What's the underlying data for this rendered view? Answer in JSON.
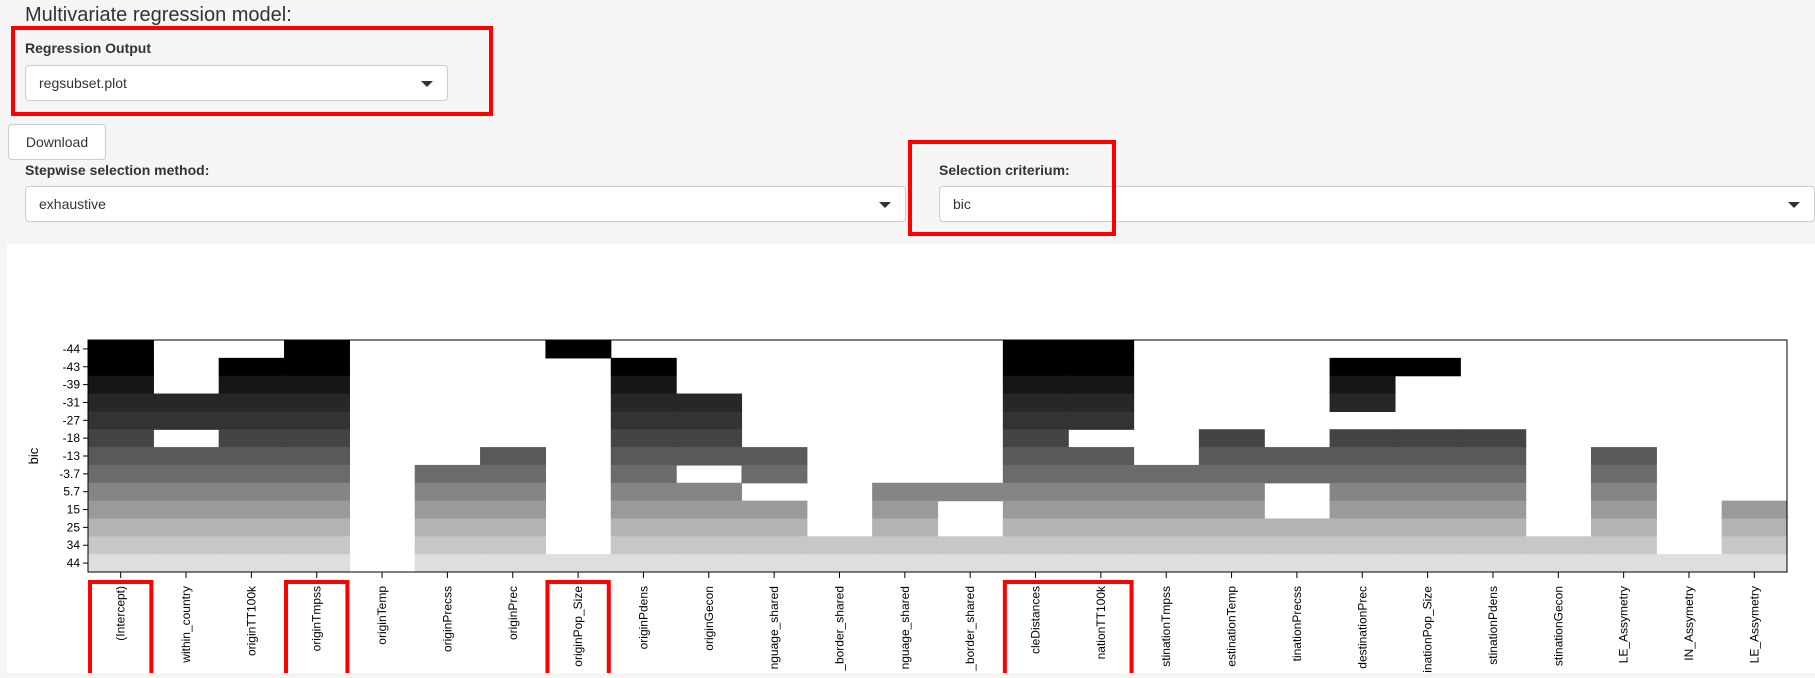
{
  "page": {
    "title": "Multivariate regression model:"
  },
  "regression_output": {
    "label": "Regression Output",
    "value": "regsubset.plot"
  },
  "download": {
    "label": "Download"
  },
  "stepwise": {
    "label": "Stepwise selection method:",
    "value": "exhaustive"
  },
  "criterium": {
    "label": "Selection criterium:",
    "value": "bic"
  },
  "icons": {
    "dropdown": "chevron-down-icon"
  },
  "colors": {
    "highlight": "#ff0000"
  },
  "chart_data": {
    "type": "heatmap",
    "ylabel": "bic",
    "y_ticks": [
      "-44",
      "-43",
      "-39",
      "-31",
      "-27",
      "-18",
      "-13",
      "-3.7",
      "5.7",
      "15",
      "25",
      "34",
      "44"
    ],
    "x_ticks": [
      "(Intercept)",
      "within_country",
      "originTT100k",
      "originTmpss",
      "originTemp",
      "originPrecss",
      "originPrec",
      "originPop_Size",
      "originPdens",
      "originGecon",
      "nguage_shared",
      "_border_shared",
      "nguage_shared",
      "_border_shared",
      "cleDistances",
      "nationTT100k",
      "stinationTmpss",
      "estinationTemp",
      "tinationPrecss",
      "destinationPrec",
      "stinationPop_Size",
      "stinationPdens",
      "stinationGecon",
      "LE_Assymetry",
      "IN_Assymetry",
      "LE_Assymetry"
    ],
    "highlighted": [
      "(Intercept)",
      "originTmpss",
      "originPop_Size",
      "cleDistances",
      "nationTT100k"
    ],
    "shades": [
      "#000000",
      "#000000",
      "#161616",
      "#272727",
      "#333333",
      "#444444",
      "#595959",
      "#6b6b6b",
      "#858585",
      "#9a9a9a",
      "#b3b3b3",
      "#c7c7c7",
      "#dedede"
    ],
    "included": [
      [
        1,
        0,
        0,
        1,
        0,
        0,
        0,
        1,
        0,
        0,
        0,
        0,
        0,
        0,
        1,
        1,
        0,
        0,
        0,
        0,
        0,
        0,
        0,
        0,
        0,
        0
      ],
      [
        1,
        0,
        1,
        1,
        0,
        0,
        0,
        0,
        1,
        0,
        0,
        0,
        0,
        0,
        1,
        1,
        0,
        0,
        0,
        1,
        1,
        0,
        0,
        0,
        0,
        0
      ],
      [
        1,
        0,
        1,
        1,
        0,
        0,
        0,
        0,
        1,
        0,
        0,
        0,
        0,
        0,
        1,
        1,
        0,
        0,
        0,
        1,
        0,
        0,
        0,
        0,
        0,
        0
      ],
      [
        1,
        1,
        1,
        1,
        0,
        0,
        0,
        0,
        1,
        1,
        0,
        0,
        0,
        0,
        1,
        1,
        0,
        0,
        0,
        1,
        0,
        0,
        0,
        0,
        0,
        0
      ],
      [
        1,
        1,
        1,
        1,
        0,
        0,
        0,
        0,
        1,
        1,
        0,
        0,
        0,
        0,
        1,
        1,
        0,
        0,
        0,
        0,
        0,
        0,
        0,
        0,
        0,
        0
      ],
      [
        1,
        0,
        1,
        1,
        0,
        0,
        0,
        0,
        1,
        1,
        0,
        0,
        0,
        0,
        1,
        0,
        0,
        1,
        0,
        1,
        1,
        1,
        0,
        0,
        0,
        0
      ],
      [
        1,
        1,
        1,
        1,
        0,
        0,
        1,
        0,
        1,
        1,
        1,
        0,
        0,
        0,
        1,
        1,
        0,
        1,
        1,
        1,
        1,
        1,
        0,
        1,
        0,
        0
      ],
      [
        1,
        1,
        1,
        1,
        0,
        1,
        1,
        0,
        1,
        0,
        1,
        0,
        0,
        0,
        1,
        1,
        1,
        1,
        1,
        1,
        1,
        1,
        0,
        1,
        0,
        0
      ],
      [
        1,
        1,
        1,
        1,
        0,
        1,
        1,
        0,
        1,
        1,
        0,
        0,
        1,
        1,
        1,
        1,
        1,
        1,
        0,
        1,
        1,
        1,
        0,
        1,
        0,
        0
      ],
      [
        1,
        1,
        1,
        1,
        0,
        1,
        1,
        0,
        1,
        1,
        1,
        0,
        1,
        0,
        1,
        1,
        1,
        1,
        0,
        1,
        1,
        1,
        0,
        1,
        0,
        1
      ],
      [
        1,
        1,
        1,
        1,
        0,
        1,
        1,
        0,
        1,
        1,
        1,
        0,
        1,
        0,
        1,
        1,
        1,
        1,
        1,
        1,
        1,
        1,
        0,
        1,
        0,
        1
      ],
      [
        1,
        1,
        1,
        1,
        0,
        1,
        1,
        0,
        1,
        1,
        1,
        1,
        1,
        1,
        1,
        1,
        1,
        1,
        1,
        1,
        1,
        1,
        1,
        1,
        0,
        1
      ],
      [
        1,
        1,
        1,
        1,
        0,
        1,
        1,
        1,
        1,
        1,
        1,
        1,
        1,
        1,
        1,
        1,
        1,
        1,
        1,
        1,
        1,
        1,
        1,
        1,
        1,
        1
      ]
    ]
  }
}
